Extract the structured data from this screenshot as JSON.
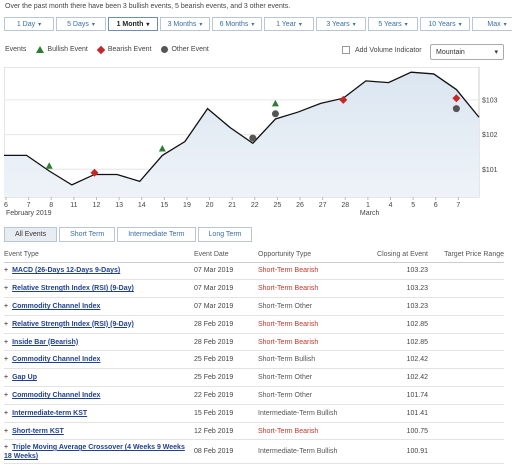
{
  "summary": "Over the past month there have been 3 bullish events, 5 bearish events, and 3 other events.",
  "ranges": [
    {
      "label": "1 Day",
      "active": false
    },
    {
      "label": "5 Days",
      "active": false
    },
    {
      "label": "1 Month",
      "active": true
    },
    {
      "label": "3 Months",
      "active": false
    },
    {
      "label": "6 Months",
      "active": false
    },
    {
      "label": "1 Year",
      "active": false
    },
    {
      "label": "3 Years",
      "active": false
    },
    {
      "label": "5 Years",
      "active": false
    },
    {
      "label": "10 Years",
      "active": false
    },
    {
      "label": "Max",
      "active": false
    }
  ],
  "legend": {
    "events_label": "Events",
    "bullish_label": "Bullish Event",
    "bearish_label": "Bearish Event",
    "other_label": "Other Event",
    "add_volume_label": "Add Volume Indicator",
    "chart_style": "Mountain",
    "colors": {
      "bullish": "#2e7d32",
      "bearish": "#c62828",
      "other": "#555555"
    }
  },
  "chart_data": {
    "type": "area",
    "x_ticks": [
      "6",
      "7",
      "8",
      "11",
      "12",
      "13",
      "14",
      "15",
      "19",
      "20",
      "21",
      "22",
      "25",
      "26",
      "27",
      "28",
      "1",
      "4",
      "5",
      "6",
      "7"
    ],
    "x_sublabels": {
      "february": "February 2019",
      "march": "March"
    },
    "y_ticks": [
      "$101",
      "$102",
      "$103"
    ],
    "ylim": [
      100.2,
      103.95
    ],
    "x": [
      "Feb 6",
      "Feb 7",
      "Feb 8",
      "Feb 11",
      "Feb 12",
      "Feb 13",
      "Feb 14",
      "Feb 15",
      "Feb 19",
      "Feb 20",
      "Feb 21",
      "Feb 22",
      "Feb 25",
      "Feb 26",
      "Feb 27",
      "Feb 28",
      "Mar 1",
      "Mar 4",
      "Mar 5",
      "Mar 6",
      "Mar 7",
      "Mar 8"
    ],
    "values": [
      101.4,
      101.4,
      100.95,
      100.55,
      100.85,
      100.85,
      100.65,
      101.4,
      101.8,
      102.75,
      102.2,
      101.75,
      102.45,
      102.65,
      102.9,
      103.05,
      103.55,
      103.5,
      103.8,
      103.75,
      103.3,
      102.5
    ],
    "events": [
      {
        "type": "bullish",
        "date": "Feb 8",
        "value": 101.1
      },
      {
        "type": "bearish",
        "date": "Feb 12",
        "value": 100.9
      },
      {
        "type": "bullish",
        "date": "Feb 15",
        "value": 101.6
      },
      {
        "type": "other",
        "date": "Feb 22",
        "value": 101.9
      },
      {
        "type": "other",
        "date": "Feb 25",
        "value": 102.6
      },
      {
        "type": "bullish",
        "date": "Feb 25",
        "value": 102.9
      },
      {
        "type": "bearish",
        "date": "Feb 28",
        "value": 103.0
      },
      {
        "type": "other",
        "date": "Mar 7",
        "value": 102.75
      },
      {
        "type": "bearish",
        "date": "Mar 7",
        "value": 103.05
      }
    ]
  },
  "tabs": [
    "All Events",
    "Short Term",
    "Intermediate Term",
    "Long Term"
  ],
  "table": {
    "headers": [
      "Event Type",
      "Event Date",
      "Opportunity Type",
      "Closing at Event",
      "Target Price Range"
    ],
    "rows": [
      {
        "type": "MACD (26-Days 12-Days 9-Days)",
        "date": "07 Mar 2019",
        "opp": "Short-Term Bearish",
        "close": "103.23",
        "bear": true
      },
      {
        "type": "Relative Strength Index (RSI) (9-Day)",
        "date": "07 Mar 2019",
        "opp": "Short-Term Bearish",
        "close": "103.23",
        "bear": true
      },
      {
        "type": "Commodity Channel Index",
        "date": "07 Mar 2019",
        "opp": "Short-Term Other",
        "close": "103.23",
        "bear": false
      },
      {
        "type": "Relative Strength Index (RSI) (9-Day)",
        "date": "28 Feb 2019",
        "opp": "Short-Term Bearish",
        "close": "102.85",
        "bear": true
      },
      {
        "type": "Inside Bar (Bearish)",
        "date": "28 Feb 2019",
        "opp": "Short-Term Bearish",
        "close": "102.85",
        "bear": true
      },
      {
        "type": "Commodity Channel Index",
        "date": "25 Feb 2019",
        "opp": "Short-Term Bullish",
        "close": "102.42",
        "bear": false
      },
      {
        "type": "Gap Up",
        "date": "25 Feb 2019",
        "opp": "Short-Term Other",
        "close": "102.42",
        "bear": false
      },
      {
        "type": "Commodity Channel Index",
        "date": "22 Feb 2019",
        "opp": "Short-Term Other",
        "close": "101.74",
        "bear": false
      },
      {
        "type": "Intermediate-term KST",
        "date": "15 Feb 2019",
        "opp": "Intermediate-Term Bullish",
        "close": "101.41",
        "bear": false
      },
      {
        "type": "Short-term KST",
        "date": "12 Feb 2019",
        "opp": "Short-Term Bearish",
        "close": "100.75",
        "bear": true
      },
      {
        "type": "Triple Moving Average Crossover (4 Weeks 9 Weeks 18 Weeks)",
        "date": "08 Feb 2019",
        "opp": "Intermediate-Term Bullish",
        "close": "100.91",
        "bear": false
      }
    ]
  }
}
